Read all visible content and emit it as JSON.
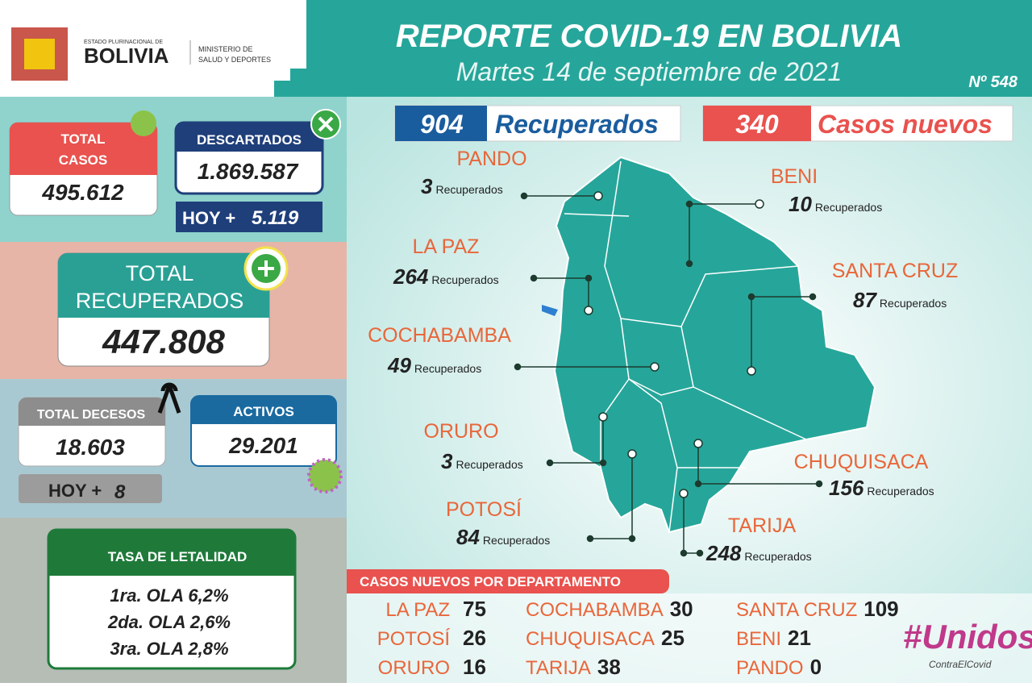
{
  "header": {
    "state": "ESTADO PLURINACIONAL DE",
    "country": "BOLIVIA",
    "ministry_1": "MINISTERIO DE",
    "ministry_2": "SALUD Y DEPORTES",
    "title": "REPORTE COVID-19 EN BOLIVIA",
    "subtitle": "Martes 14 de septiembre de 2021",
    "number": "Nº 548"
  },
  "stats": {
    "total_casos": {
      "label_1": "TOTAL",
      "label_2": "CASOS",
      "value": "495.612"
    },
    "descartados": {
      "label": "DESCARTADOS",
      "value": "1.869.587",
      "hoy_label": "HOY +",
      "hoy": "5.119"
    },
    "recuperados": {
      "label_1": "TOTAL",
      "label_2": "RECUPERADOS",
      "value": "447.808"
    },
    "decesos": {
      "label": "TOTAL DECESOS",
      "value": "18.603",
      "hoy_label": "HOY +",
      "hoy": "8"
    },
    "activos": {
      "label": "ACTIVOS",
      "value": "29.201"
    },
    "letalidad": {
      "title": "TASA DE LETALIDAD",
      "rows": [
        "1ra. OLA 6,2%",
        "2da. OLA 2,6%",
        "3ra. OLA 2,8%"
      ]
    }
  },
  "summary": {
    "recuperados": {
      "value": "904",
      "label": "Recuperados"
    },
    "nuevos": {
      "value": "340",
      "label": "Casos nuevos"
    }
  },
  "map": {
    "unit": "Recuperados",
    "departments": [
      {
        "name": "PANDO",
        "value": "3"
      },
      {
        "name": "BENI",
        "value": "10"
      },
      {
        "name": "LA PAZ",
        "value": "264"
      },
      {
        "name": "SANTA CRUZ",
        "value": "87"
      },
      {
        "name": "COCHABAMBA",
        "value": "49"
      },
      {
        "name": "ORURO",
        "value": "3"
      },
      {
        "name": "CHUQUISACA",
        "value": "156"
      },
      {
        "name": "POTOSÍ",
        "value": "84"
      },
      {
        "name": "TARIJA",
        "value": "248"
      }
    ]
  },
  "casos_nuevos": {
    "title": "CASOS NUEVOS POR DEPARTAMENTO",
    "rows": [
      [
        {
          "name": "LA PAZ",
          "value": "75"
        },
        {
          "name": "COCHABAMBA",
          "value": "30"
        },
        {
          "name": "SANTA CRUZ",
          "value": "109"
        }
      ],
      [
        {
          "name": "POTOSÍ",
          "value": "26"
        },
        {
          "name": "CHUQUISACA",
          "value": "25"
        },
        {
          "name": "BENI",
          "value": "21"
        }
      ],
      [
        {
          "name": "ORURO",
          "value": "16"
        },
        {
          "name": "TARIJA",
          "value": "38"
        },
        {
          "name": "PANDO",
          "value": "0"
        }
      ]
    ]
  },
  "slogan": {
    "main": "#Unidos",
    "sub": "ContraElCovid"
  }
}
